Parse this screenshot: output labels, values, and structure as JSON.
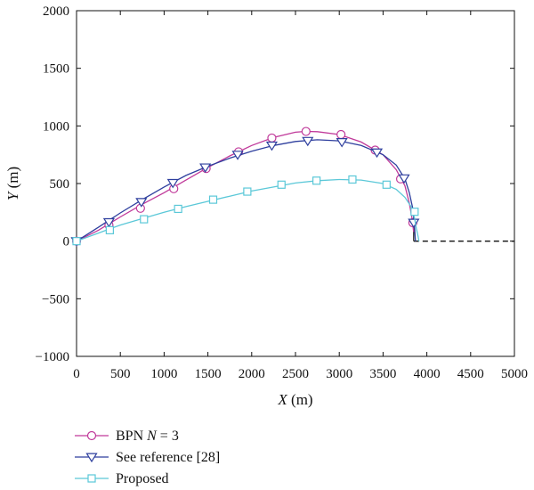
{
  "chart_data": {
    "type": "line",
    "title": "",
    "xlabel": {
      "var": "X",
      "unit": " (m)"
    },
    "ylabel": {
      "var": "Y",
      "unit": " (m)"
    },
    "xlim": [
      0,
      5000
    ],
    "ylim": [
      -1000,
      2000
    ],
    "xticks": [
      0,
      500,
      1000,
      1500,
      2000,
      2500,
      3000,
      3500,
      4000,
      4500,
      5000
    ],
    "yticks": [
      -1000,
      -500,
      0,
      500,
      1000,
      1500,
      2000
    ],
    "xtick_labels": [
      "0",
      "500",
      "1000",
      "1500",
      "2000",
      "2500",
      "3000",
      "3500",
      "4000",
      "4500",
      "5000"
    ],
    "ytick_labels": [
      "−1000",
      "−500",
      "0",
      "500",
      "1000",
      "1500",
      "2000"
    ],
    "grid": false,
    "legend_position": "below-left",
    "series": [
      {
        "name": "BPN N = 3",
        "name_parts": [
          "BPN ",
          "N",
          " = 3"
        ],
        "color": "#c0399a",
        "marker": "circle",
        "x": [
          0,
          250,
          500,
          750,
          1000,
          1250,
          1500,
          1750,
          2000,
          2250,
          2500,
          2620,
          2750,
          3000,
          3250,
          3500,
          3650,
          3750,
          3800,
          3830,
          3850
        ],
        "y": [
          0,
          95,
          210,
          320,
          420,
          530,
          640,
          740,
          830,
          900,
          945,
          952,
          950,
          925,
          860,
          750,
          620,
          480,
          330,
          200,
          80
        ],
        "marker_x": [
          0,
          370,
          730,
          1110,
          1480,
          1850,
          2230,
          2620,
          3020,
          3410,
          3700,
          3840
        ],
        "marker_y": [
          0,
          140,
          285,
          455,
          630,
          775,
          895,
          952,
          925,
          790,
          540,
          160
        ]
      },
      {
        "name": "See reference [28]",
        "color": "#2e3f9e",
        "marker": "triangle-down",
        "x": [
          0,
          250,
          500,
          750,
          1000,
          1250,
          1500,
          1750,
          2000,
          2250,
          2500,
          2750,
          3000,
          3250,
          3500,
          3650,
          3750,
          3800,
          3840,
          3860,
          3870
        ],
        "y": [
          0,
          120,
          245,
          360,
          470,
          570,
          650,
          720,
          780,
          830,
          865,
          880,
          870,
          830,
          750,
          660,
          540,
          420,
          280,
          120,
          0
        ],
        "marker_x": [
          0,
          370,
          740,
          1100,
          1470,
          1840,
          2230,
          2640,
          3030,
          3430,
          3740,
          3850
        ],
        "marker_y": [
          0,
          165,
          340,
          505,
          640,
          750,
          830,
          870,
          860,
          770,
          545,
          160
        ]
      },
      {
        "name": "Proposed",
        "color": "#5bc8d8",
        "marker": "square",
        "x": [
          0,
          250,
          500,
          750,
          1000,
          1250,
          1500,
          1750,
          2000,
          2250,
          2500,
          2750,
          3000,
          3250,
          3500,
          3650,
          3750,
          3820,
          3860,
          3880,
          3900,
          3910
        ],
        "y": [
          0,
          70,
          140,
          195,
          250,
          300,
          345,
          390,
          435,
          470,
          505,
          525,
          535,
          530,
          500,
          450,
          380,
          300,
          200,
          110,
          40,
          0
        ],
        "marker_x": [
          0,
          380,
          770,
          1160,
          1560,
          1950,
          2340,
          2740,
          3150,
          3540,
          3860
        ],
        "marker_y": [
          0,
          95,
          190,
          280,
          360,
          430,
          490,
          525,
          535,
          490,
          255
        ]
      }
    ],
    "reference_line": {
      "style": "dashed",
      "color": "#111111",
      "x": [
        3850,
        5000
      ],
      "y": [
        0,
        0
      ],
      "vertical_x": 3850,
      "vertical_y": [
        0,
        200
      ]
    }
  }
}
